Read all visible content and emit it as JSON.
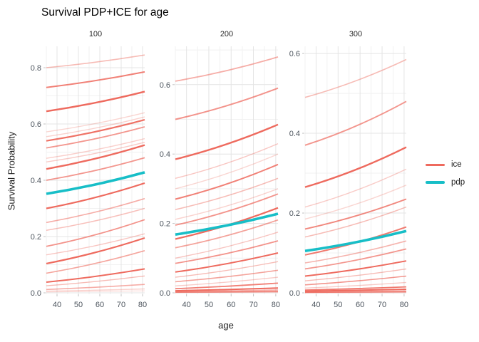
{
  "chart_data": {
    "type": "line",
    "title": "Survival PDP+ICE for age",
    "xlabel": "age",
    "ylabel": "Survival Probability",
    "x_range": [
      35,
      81
    ],
    "x_ticks": [
      40,
      50,
      60,
      70,
      80
    ],
    "x_minor_ticks": [
      35,
      45,
      55,
      65,
      75
    ],
    "grid": true,
    "legend": {
      "position": "right",
      "items": [
        {
          "label": "ice",
          "color": "#ee6a5e"
        },
        {
          "label": "pdp",
          "color": "#17bec7"
        }
      ]
    },
    "facets": [
      {
        "label": "100",
        "ylim": [
          0,
          0.876
        ],
        "y_ticks": [
          0,
          0.2,
          0.4,
          0.6,
          0.8
        ],
        "y_minor_ticks": [
          0.1,
          0.3,
          0.5,
          0.7
        ],
        "pdp": {
          "x": [
            35,
            81
          ],
          "y": [
            0.352,
            0.428
          ]
        },
        "ice_lines": [
          {
            "y": [
              0.8,
              0.845
            ],
            "alpha": 0.45,
            "width": 1.6
          },
          {
            "y": [
              0.73,
              0.785
            ],
            "alpha": 0.85,
            "width": 2.0
          },
          {
            "y": [
              0.645,
              0.715
            ],
            "alpha": 1.0,
            "width": 2.4
          },
          {
            "y": [
              0.572,
              0.64
            ],
            "alpha": 0.28,
            "width": 1.4
          },
          {
            "y": [
              0.555,
              0.625
            ],
            "alpha": 0.3,
            "width": 1.4
          },
          {
            "y": [
              0.54,
              0.615
            ],
            "alpha": 0.95,
            "width": 2.2
          },
          {
            "y": [
              0.515,
              0.59
            ],
            "alpha": 0.7,
            "width": 1.8
          },
          {
            "y": [
              0.478,
              0.548
            ],
            "alpha": 0.32,
            "width": 1.4
          },
          {
            "y": [
              0.465,
              0.535
            ],
            "alpha": 0.35,
            "width": 1.4
          },
          {
            "y": [
              0.44,
              0.525
            ],
            "alpha": 1.0,
            "width": 2.4
          },
          {
            "y": [
              0.4,
              0.48
            ],
            "alpha": 0.7,
            "width": 1.8
          },
          {
            "y": [
              0.3,
              0.39
            ],
            "alpha": 1.0,
            "width": 2.2
          },
          {
            "y": [
              0.25,
              0.335
            ],
            "alpha": 0.55,
            "width": 1.6
          },
          {
            "y": [
              0.222,
              0.3
            ],
            "alpha": 0.42,
            "width": 1.5
          },
          {
            "y": [
              0.165,
              0.26
            ],
            "alpha": 0.72,
            "width": 1.8
          },
          {
            "y": [
              0.135,
              0.21
            ],
            "alpha": 0.38,
            "width": 1.4
          },
          {
            "y": [
              0.104,
              0.195
            ],
            "alpha": 1.0,
            "width": 2.2
          },
          {
            "y": [
              0.07,
              0.15
            ],
            "alpha": 0.6,
            "width": 1.6
          },
          {
            "y": [
              0.038,
              0.085
            ],
            "alpha": 1.0,
            "width": 2.0
          },
          {
            "y": [
              0.025,
              0.06
            ],
            "alpha": 0.45,
            "width": 1.4
          },
          {
            "y": [
              0.012,
              0.03
            ],
            "alpha": 0.55,
            "width": 1.6
          },
          {
            "y": [
              0.006,
              0.014
            ],
            "alpha": 0.3,
            "width": 1.4
          },
          {
            "y": [
              0.003,
              0.007
            ],
            "alpha": 0.25,
            "width": 1.2
          }
        ]
      },
      {
        "label": "200",
        "ylim": [
          0,
          0.7105
        ],
        "y_ticks": [
          0,
          0.2,
          0.4,
          0.6
        ],
        "y_minor_ticks": [
          0.1,
          0.3,
          0.5,
          0.7
        ],
        "pdp": {
          "x": [
            35,
            81
          ],
          "y": [
            0.168,
            0.228
          ]
        },
        "ice_lines": [
          {
            "y": [
              0.61,
              0.68
            ],
            "alpha": 0.55,
            "width": 1.8
          },
          {
            "y": [
              0.5,
              0.59
            ],
            "alpha": 0.72,
            "width": 2.0
          },
          {
            "y": [
              0.385,
              0.485
            ],
            "alpha": 1.0,
            "width": 2.4
          },
          {
            "y": [
              0.33,
              0.43
            ],
            "alpha": 0.38,
            "width": 1.4
          },
          {
            "y": [
              0.3,
              0.4
            ],
            "alpha": 0.28,
            "width": 1.4
          },
          {
            "y": [
              0.27,
              0.37
            ],
            "alpha": 0.85,
            "width": 2.0
          },
          {
            "y": [
              0.24,
              0.33
            ],
            "alpha": 0.45,
            "width": 1.6
          },
          {
            "y": [
              0.212,
              0.3
            ],
            "alpha": 0.3,
            "width": 1.4
          },
          {
            "y": [
              0.195,
              0.285
            ],
            "alpha": 0.72,
            "width": 1.8
          },
          {
            "y": [
              0.155,
              0.245
            ],
            "alpha": 1.0,
            "width": 2.2
          },
          {
            "y": [
              0.13,
              0.21
            ],
            "alpha": 0.62,
            "width": 1.8
          },
          {
            "y": [
              0.1,
              0.175
            ],
            "alpha": 0.4,
            "width": 1.4
          },
          {
            "y": [
              0.085,
              0.15
            ],
            "alpha": 0.72,
            "width": 1.8
          },
          {
            "y": [
              0.06,
              0.115
            ],
            "alpha": 1.0,
            "width": 2.0
          },
          {
            "y": [
              0.045,
              0.09
            ],
            "alpha": 0.45,
            "width": 1.4
          },
          {
            "y": [
              0.032,
              0.065
            ],
            "alpha": 0.62,
            "width": 1.6
          },
          {
            "y": [
              0.02,
              0.045
            ],
            "alpha": 0.35,
            "width": 1.4
          },
          {
            "y": [
              0.012,
              0.028
            ],
            "alpha": 0.85,
            "width": 1.8
          },
          {
            "y": [
              0.006,
              0.014
            ],
            "alpha": 1.0,
            "width": 2.0
          },
          {
            "y": [
              0.003,
              0.008
            ],
            "alpha": 0.55,
            "width": 1.6
          },
          {
            "y": [
              0.002,
              0.004
            ],
            "alpha": 0.8,
            "width": 1.8
          },
          {
            "y": [
              0.001,
              0.002
            ],
            "alpha": 0.4,
            "width": 1.4
          }
        ]
      },
      {
        "label": "300",
        "ylim": [
          0,
          0.618
        ],
        "y_ticks": [
          0,
          0.2,
          0.4,
          0.6
        ],
        "y_minor_ticks": [
          0.1,
          0.3,
          0.5
        ],
        "pdp": {
          "x": [
            35,
            81
          ],
          "y": [
            0.105,
            0.155
          ]
        },
        "ice_lines": [
          {
            "y": [
              0.49,
              0.585
            ],
            "alpha": 0.45,
            "width": 1.6
          },
          {
            "y": [
              0.37,
              0.48
            ],
            "alpha": 0.7,
            "width": 1.9
          },
          {
            "y": [
              0.265,
              0.365
            ],
            "alpha": 1.0,
            "width": 2.4
          },
          {
            "y": [
              0.215,
              0.31
            ],
            "alpha": 0.35,
            "width": 1.4
          },
          {
            "y": [
              0.185,
              0.27
            ],
            "alpha": 0.28,
            "width": 1.4
          },
          {
            "y": [
              0.16,
              0.235
            ],
            "alpha": 0.8,
            "width": 1.9
          },
          {
            "y": [
              0.14,
              0.215
            ],
            "alpha": 0.45,
            "width": 1.5
          },
          {
            "y": [
              0.095,
              0.165
            ],
            "alpha": 0.9,
            "width": 2.0
          },
          {
            "y": [
              0.075,
              0.13
            ],
            "alpha": 0.5,
            "width": 1.6
          },
          {
            "y": [
              0.06,
              0.11
            ],
            "alpha": 0.7,
            "width": 1.8
          },
          {
            "y": [
              0.042,
              0.08
            ],
            "alpha": 1.0,
            "width": 2.0
          },
          {
            "y": [
              0.03,
              0.06
            ],
            "alpha": 0.45,
            "width": 1.4
          },
          {
            "y": [
              0.02,
              0.042
            ],
            "alpha": 0.7,
            "width": 1.6
          },
          {
            "y": [
              0.012,
              0.026
            ],
            "alpha": 0.35,
            "width": 1.4
          },
          {
            "y": [
              0.007,
              0.015
            ],
            "alpha": 0.9,
            "width": 1.8
          },
          {
            "y": [
              0.004,
              0.009
            ],
            "alpha": 1.0,
            "width": 2.0
          },
          {
            "y": [
              0.002,
              0.005
            ],
            "alpha": 0.55,
            "width": 1.5
          },
          {
            "y": [
              0.001,
              0.003
            ],
            "alpha": 0.8,
            "width": 1.6
          },
          {
            "y": [
              0.0005,
              0.001
            ],
            "alpha": 0.4,
            "width": 1.4
          }
        ]
      }
    ]
  }
}
